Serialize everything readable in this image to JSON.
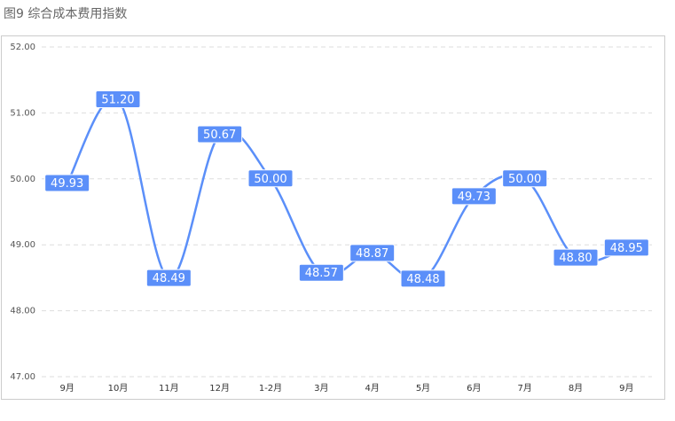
{
  "chart_data": {
    "type": "line",
    "title": "图9 综合成本费用指数",
    "categories": [
      "9月",
      "10月",
      "11月",
      "12月",
      "1-2月",
      "3月",
      "4月",
      "5月",
      "6月",
      "7月",
      "8月",
      "9月"
    ],
    "series": [
      {
        "name": "综合成本费用指数",
        "color": "#5b8ff9",
        "values": [
          49.93,
          51.2,
          48.49,
          50.67,
          50,
          48.57,
          48.87,
          48.48,
          49.73,
          50,
          48.8,
          48.95
        ],
        "value_labels": [
          "49.93",
          "51.20",
          "48.49",
          "50.67",
          "50.00",
          "48.57",
          "48.87",
          "48.48",
          "49.73",
          "50.00",
          "48.80",
          "48.95"
        ]
      }
    ],
    "ylim": [
      47,
      52
    ],
    "yticks": [
      {
        "value": 47,
        "label": "47.00"
      },
      {
        "value": 48,
        "label": "48.00"
      },
      {
        "value": 49,
        "label": "49.00"
      },
      {
        "value": 50,
        "label": "50.00"
      },
      {
        "value": 51,
        "label": "51.00"
      },
      {
        "value": 52,
        "label": "52.00"
      }
    ],
    "grid": true
  }
}
